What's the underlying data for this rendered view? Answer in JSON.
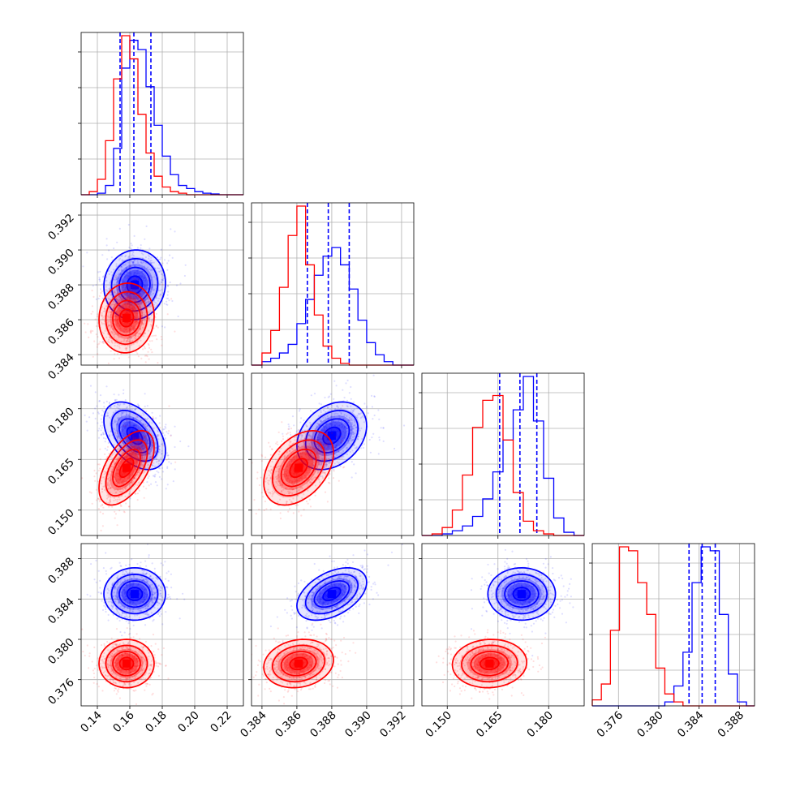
{
  "chart_data": {
    "type": "corner",
    "colors": {
      "blue": "#0000ff",
      "red": "#ff0000"
    },
    "grid": true,
    "parameters": [
      {
        "lim": [
          0.13,
          0.23
        ],
        "ticks": [
          0.14,
          0.16,
          0.18,
          0.2,
          0.22
        ],
        "tick_labels": [
          "0.14",
          "0.16",
          "0.18",
          "0.20",
          "0.22"
        ]
      },
      {
        "lim": [
          0.3834,
          0.3927
        ],
        "ticks": [
          0.384,
          0.386,
          0.388,
          0.39,
          0.392
        ],
        "tick_labels": [
          "0.384",
          "0.386",
          "0.388",
          "0.390",
          "0.392"
        ]
      },
      {
        "lim": [
          0.1425,
          0.1905
        ],
        "ticks": [
          0.15,
          0.165,
          0.18
        ],
        "tick_labels": [
          "0.150",
          "0.165",
          "0.180"
        ]
      },
      {
        "lim": [
          0.3734,
          0.3895
        ],
        "ticks": [
          0.376,
          0.38,
          0.384,
          0.388
        ],
        "tick_labels": [
          "0.376",
          "0.380",
          "0.384",
          "0.388"
        ]
      }
    ],
    "series": [
      {
        "color": "blue",
        "means": [
          0.163,
          0.388,
          0.172,
          0.3845
        ],
        "sigmas": [
          0.0095,
          0.001,
          0.005,
          0.0013
        ],
        "correlations": [
          [
            0,
            1,
            0.05
          ],
          [
            0,
            2,
            -0.45
          ],
          [
            0,
            3,
            0.0
          ],
          [
            1,
            2,
            0.3
          ],
          [
            1,
            3,
            0.45
          ],
          [
            2,
            3,
            0.0
          ]
        ],
        "quantiles": [
          [
            0.154,
            0.1625,
            0.173
          ],
          [
            0.3866,
            0.3878,
            0.389
          ],
          [
            0.1655,
            0.1715,
            0.1765
          ],
          [
            0.383,
            0.3843,
            0.3856
          ]
        ],
        "histograms": [
          {
            "edges": [
              0.13,
              0.135,
              0.14,
              0.145,
              0.15,
              0.155,
              0.16,
              0.165,
              0.17,
              0.175,
              0.18,
              0.185,
              0.19,
              0.195,
              0.2,
              0.205,
              0.21,
              0.215,
              0.22,
              0.225,
              0.23
            ],
            "counts": [
              0,
              0,
              1,
              6,
              30,
              82,
              100,
              94,
              70,
              45,
              25,
              13,
              6,
              4,
              2,
              1,
              0.5,
              0,
              0,
              0
            ]
          },
          {
            "edges": [
              0.3834,
              0.384,
              0.3845,
              0.385,
              0.3855,
              0.386,
              0.3865,
              0.387,
              0.3875,
              0.388,
              0.3885,
              0.389,
              0.3895,
              0.39,
              0.3905,
              0.391,
              0.3915,
              0.392,
              0.3927
            ],
            "counts": [
              0,
              2,
              4,
              7,
              12,
              24,
              38,
              52,
              63,
              68,
              58,
              44,
              26,
              13,
              6,
              2,
              0,
              0
            ]
          },
          {
            "edges": [
              0.1425,
              0.1455,
              0.1485,
              0.1515,
              0.1545,
              0.1575,
              0.1605,
              0.1635,
              0.1665,
              0.1695,
              0.1725,
              0.1755,
              0.1785,
              0.1815,
              0.1845,
              0.1875,
              0.1905
            ],
            "counts": [
              0,
              0,
              1,
              3,
              6,
              12,
              23,
              40,
              60,
              79,
              100,
              72,
              36,
              11,
              2,
              0
            ]
          },
          {
            "edges": [
              0.3734,
              0.3743,
              0.3752,
              0.3761,
              0.377,
              0.3779,
              0.3788,
              0.3797,
              0.3806,
              0.3815,
              0.3824,
              0.3833,
              0.3842,
              0.3851,
              0.386,
              0.3869,
              0.3878,
              0.3887,
              0.3895
            ],
            "counts": [
              0,
              0,
              0,
              0,
              0,
              0,
              0,
              0,
              2,
              10,
              27,
              62,
              80,
              78,
              46,
              16,
              2,
              0
            ]
          }
        ]
      },
      {
        "color": "red",
        "means": [
          0.158,
          0.3861,
          0.1625,
          0.3776
        ],
        "sigmas": [
          0.0085,
          0.001,
          0.0055,
          0.0012
        ],
        "correlations": [
          [
            0,
            1,
            0.05
          ],
          [
            0,
            2,
            0.55
          ],
          [
            0,
            3,
            0.0
          ],
          [
            1,
            2,
            0.4
          ],
          [
            1,
            3,
            0.15
          ],
          [
            2,
            3,
            0.05
          ]
        ],
        "histograms": [
          {
            "edges": [
              0.13,
              0.135,
              0.14,
              0.145,
              0.15,
              0.155,
              0.16,
              0.165,
              0.17,
              0.175,
              0.18,
              0.185,
              0.19,
              0.195,
              0.2,
              0.205,
              0.21,
              0.215,
              0.22,
              0.225,
              0.23
            ],
            "counts": [
              0,
              2,
              10,
              35,
              75,
              103,
              88,
              52,
              27,
              12,
              5,
              2,
              1,
              0,
              0,
              0,
              0,
              0,
              0,
              0
            ]
          },
          {
            "edges": [
              0.3834,
              0.384,
              0.3845,
              0.385,
              0.3855,
              0.386,
              0.3865,
              0.387,
              0.3875,
              0.388,
              0.3885,
              0.389,
              0.3895,
              0.39,
              0.3905,
              0.391,
              0.3915,
              0.392,
              0.3927
            ],
            "counts": [
              0,
              7,
              20,
              45,
              75,
              92,
              58,
              29,
              11,
              4,
              1,
              0,
              0,
              0,
              0,
              0,
              0,
              0
            ]
          },
          {
            "edges": [
              0.1425,
              0.1455,
              0.1485,
              0.1515,
              0.1545,
              0.1575,
              0.1605,
              0.1635,
              0.1665,
              0.1695,
              0.1725,
              0.1755,
              0.1785,
              0.1815,
              0.1845,
              0.1875,
              0.1905
            ],
            "counts": [
              0,
              1,
              5,
              16,
              38,
              68,
              85,
              88,
              60,
              27,
              9,
              3,
              1,
              0,
              0,
              0
            ]
          },
          {
            "edges": [
              0.3734,
              0.3743,
              0.3752,
              0.3761,
              0.377,
              0.3779,
              0.3788,
              0.3797,
              0.3806,
              0.3815,
              0.3824,
              0.3833,
              0.3842,
              0.3851,
              0.386,
              0.3869,
              0.3878,
              0.3887,
              0.3895
            ],
            "counts": [
              3,
              11,
              38,
              80,
              78,
              62,
              46,
              19,
              6,
              2,
              0,
              0,
              0,
              0,
              0,
              0,
              0,
              0
            ]
          }
        ]
      }
    ]
  }
}
